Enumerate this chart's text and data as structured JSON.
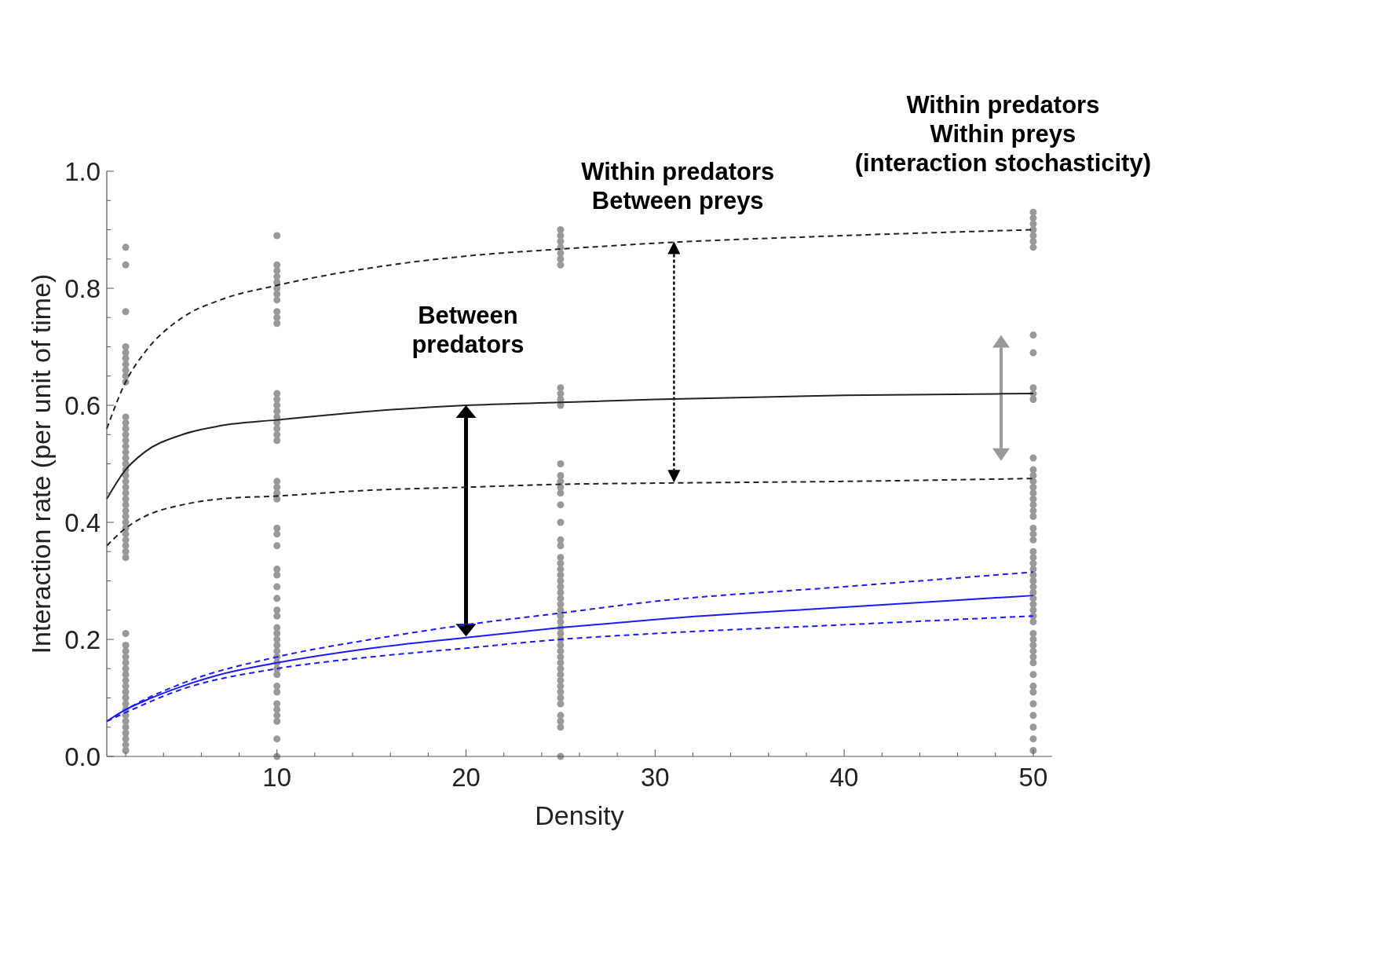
{
  "chart_data": {
    "type": "scatter",
    "xlabel": "Density",
    "ylabel": "Interaction rate (per unit of time)",
    "xlim": [
      1,
      51
    ],
    "ylim": [
      0,
      1
    ],
    "xticks": [
      {
        "value": 2,
        "label": null
      },
      {
        "value": 4,
        "label": null
      },
      {
        "value": 6,
        "label": null
      },
      {
        "value": 8,
        "label": null
      },
      10,
      {
        "value": 12,
        "label": null
      },
      {
        "value": 14,
        "label": null
      },
      {
        "value": 16,
        "label": null
      },
      {
        "value": 18,
        "label": null
      },
      20,
      {
        "value": 22,
        "label": null
      },
      {
        "value": 24,
        "label": null
      },
      {
        "value": 26,
        "label": null
      },
      {
        "value": 28,
        "label": null
      },
      30,
      {
        "value": 32,
        "label": null
      },
      {
        "value": 34,
        "label": null
      },
      {
        "value": 36,
        "label": null
      },
      {
        "value": 38,
        "label": null
      },
      40,
      {
        "value": 42,
        "label": null
      },
      {
        "value": 44,
        "label": null
      },
      {
        "value": 46,
        "label": null
      },
      {
        "value": 48,
        "label": null
      },
      50
    ],
    "yticks": [
      {
        "value": 0,
        "label": "0.0"
      },
      {
        "value": 0.05,
        "label": null
      },
      {
        "value": 0.1,
        "label": null
      },
      {
        "value": 0.15,
        "label": null
      },
      {
        "value": 0.2,
        "label": "0.2"
      },
      {
        "value": 0.25,
        "label": null
      },
      {
        "value": 0.3,
        "label": null
      },
      {
        "value": 0.35,
        "label": null
      },
      {
        "value": 0.4,
        "label": "0.4"
      },
      {
        "value": 0.45,
        "label": null
      },
      {
        "value": 0.5,
        "label": null
      },
      {
        "value": 0.55,
        "label": null
      },
      {
        "value": 0.6,
        "label": "0.6"
      },
      {
        "value": 0.65,
        "label": null
      },
      {
        "value": 0.7,
        "label": null
      },
      {
        "value": 0.75,
        "label": null
      },
      {
        "value": 0.8,
        "label": "0.8"
      },
      {
        "value": 0.85,
        "label": null
      },
      {
        "value": 0.9,
        "label": null
      },
      {
        "value": 0.95,
        "label": null
      },
      {
        "value": 1,
        "label": "1.0"
      }
    ],
    "grid": false,
    "annotations": [
      "Between\npredators",
      "Within predators\nBetween preys",
      "Within predators\nWithin preys\n(interaction stochasticity)"
    ],
    "series": [
      {
        "marker": "circle",
        "color": "#999999",
        "x": [
          2,
          2,
          2,
          2,
          2,
          2,
          2,
          2,
          2,
          2,
          2,
          2,
          2,
          2,
          2,
          2,
          2,
          2,
          2,
          2,
          2,
          2,
          2,
          2,
          2,
          2,
          2,
          2,
          2,
          2,
          2,
          2,
          2,
          2,
          2,
          2,
          2,
          2,
          2,
          2,
          2,
          2,
          2,
          2,
          2,
          2,
          2,
          2,
          2,
          2,
          2,
          2,
          2,
          2,
          2
        ],
        "values": [
          0.87,
          0.84,
          0.76,
          0.7,
          0.69,
          0.68,
          0.67,
          0.66,
          0.65,
          0.64,
          0.58,
          0.57,
          0.56,
          0.55,
          0.54,
          0.53,
          0.52,
          0.51,
          0.5,
          0.49,
          0.48,
          0.47,
          0.46,
          0.45,
          0.44,
          0.43,
          0.42,
          0.41,
          0.4,
          0.39,
          0.38,
          0.37,
          0.36,
          0.35,
          0.34,
          0.21,
          0.19,
          0.18,
          0.17,
          0.16,
          0.15,
          0.14,
          0.13,
          0.12,
          0.11,
          0.1,
          0.09,
          0.08,
          0.07,
          0.06,
          0.05,
          0.04,
          0.03,
          0.02,
          0.01
        ]
      },
      {
        "marker": "circle",
        "color": "#999999",
        "x": [
          10,
          10,
          10,
          10,
          10,
          10,
          10,
          10,
          10,
          10,
          10,
          10,
          10,
          10,
          10,
          10,
          10,
          10,
          10,
          10,
          10,
          10,
          10,
          10,
          10,
          10,
          10,
          10,
          10,
          10,
          10,
          10,
          10,
          10,
          10,
          10,
          10,
          10,
          10,
          10,
          10,
          10,
          10,
          10,
          10,
          10,
          10,
          10,
          10,
          10
        ],
        "values": [
          0.89,
          0.84,
          0.83,
          0.82,
          0.81,
          0.8,
          0.79,
          0.78,
          0.76,
          0.75,
          0.74,
          0.62,
          0.61,
          0.6,
          0.59,
          0.58,
          0.57,
          0.56,
          0.55,
          0.54,
          0.47,
          0.46,
          0.45,
          0.44,
          0.39,
          0.38,
          0.36,
          0.32,
          0.31,
          0.29,
          0.27,
          0.25,
          0.24,
          0.22,
          0.21,
          0.2,
          0.19,
          0.18,
          0.17,
          0.16,
          0.15,
          0.14,
          0.12,
          0.11,
          0.09,
          0.08,
          0.07,
          0.06,
          0.03,
          0.0
        ]
      },
      {
        "marker": "circle",
        "color": "#999999",
        "x": [
          25,
          25,
          25,
          25,
          25,
          25,
          25,
          25,
          25,
          25,
          25,
          25,
          25,
          25,
          25,
          25,
          25,
          25,
          25,
          25,
          25,
          25,
          25,
          25,
          25,
          25,
          25,
          25,
          25,
          25,
          25,
          25,
          25,
          25,
          25,
          25,
          25,
          25,
          25,
          25,
          25,
          25,
          25,
          25,
          25,
          25,
          25,
          25,
          25,
          25
        ],
        "values": [
          0.9,
          0.89,
          0.88,
          0.87,
          0.86,
          0.85,
          0.84,
          0.63,
          0.62,
          0.61,
          0.6,
          0.5,
          0.48,
          0.47,
          0.46,
          0.45,
          0.43,
          0.4,
          0.37,
          0.36,
          0.34,
          0.33,
          0.32,
          0.31,
          0.3,
          0.29,
          0.28,
          0.27,
          0.26,
          0.25,
          0.24,
          0.23,
          0.22,
          0.21,
          0.2,
          0.19,
          0.18,
          0.17,
          0.16,
          0.15,
          0.14,
          0.13,
          0.12,
          0.11,
          0.1,
          0.09,
          0.07,
          0.06,
          0.05,
          0.0
        ]
      },
      {
        "marker": "circle",
        "color": "#999999",
        "x": [
          50,
          50,
          50,
          50,
          50,
          50,
          50,
          50,
          50,
          50,
          50,
          50,
          50,
          50,
          50,
          50,
          50,
          50,
          50,
          50,
          50,
          50,
          50,
          50,
          50,
          50,
          50,
          50,
          50,
          50,
          50,
          50,
          50,
          50,
          50,
          50,
          50,
          50,
          50,
          50,
          50,
          50,
          50,
          50,
          50,
          50,
          50,
          50,
          50,
          50,
          50,
          50
        ],
        "values": [
          0.93,
          0.92,
          0.91,
          0.9,
          0.89,
          0.88,
          0.87,
          0.72,
          0.69,
          0.63,
          0.62,
          0.61,
          0.51,
          0.49,
          0.48,
          0.47,
          0.46,
          0.45,
          0.44,
          0.43,
          0.42,
          0.41,
          0.39,
          0.38,
          0.37,
          0.35,
          0.34,
          0.33,
          0.32,
          0.31,
          0.3,
          0.29,
          0.28,
          0.27,
          0.26,
          0.25,
          0.24,
          0.23,
          0.21,
          0.2,
          0.19,
          0.18,
          0.17,
          0.16,
          0.14,
          0.12,
          0.11,
          0.09,
          0.07,
          0.05,
          0.03,
          0.01
        ]
      },
      {
        "type": "line",
        "color": "#222222",
        "line_style": "dashed",
        "x": [
          1,
          2,
          3,
          5,
          7,
          10,
          15,
          20,
          25,
          30,
          40,
          50
        ],
        "values": [
          0.56,
          0.64,
          0.69,
          0.75,
          0.78,
          0.805,
          0.835,
          0.855,
          0.867,
          0.877,
          0.89,
          0.9
        ]
      },
      {
        "type": "line",
        "color": "#222222",
        "line_style": "solid",
        "x": [
          1,
          2,
          3,
          5,
          7,
          10,
          15,
          20,
          25,
          30,
          40,
          50
        ],
        "values": [
          0.44,
          0.49,
          0.52,
          0.55,
          0.565,
          0.575,
          0.59,
          0.6,
          0.605,
          0.61,
          0.617,
          0.62
        ]
      },
      {
        "type": "line",
        "color": "#222222",
        "line_style": "dashed",
        "x": [
          1,
          2,
          3,
          5,
          7,
          10,
          15,
          20,
          25,
          30,
          40,
          50
        ],
        "values": [
          0.36,
          0.39,
          0.41,
          0.43,
          0.44,
          0.445,
          0.455,
          0.46,
          0.465,
          0.467,
          0.47,
          0.475
        ]
      },
      {
        "type": "line",
        "color": "#1a1aff",
        "line_style": "dashed",
        "x": [
          1,
          2,
          5,
          10,
          15,
          20,
          25,
          30,
          40,
          50
        ],
        "values": [
          0.06,
          0.08,
          0.125,
          0.17,
          0.2,
          0.225,
          0.245,
          0.265,
          0.29,
          0.315
        ]
      },
      {
        "type": "line",
        "color": "#1a1aff",
        "line_style": "solid",
        "x": [
          1,
          2,
          3,
          5,
          7,
          10,
          15,
          20,
          25,
          30,
          40,
          50
        ],
        "values": [
          0.06,
          0.08,
          0.095,
          0.12,
          0.14,
          0.16,
          0.185,
          0.203,
          0.22,
          0.234,
          0.255,
          0.275
        ]
      },
      {
        "type": "line",
        "color": "#1a1aff",
        "line_style": "dashed",
        "x": [
          1,
          2,
          5,
          10,
          15,
          20,
          25,
          30,
          40,
          50
        ],
        "values": [
          0.06,
          0.075,
          0.115,
          0.15,
          0.17,
          0.185,
          0.2,
          0.21,
          0.225,
          0.24
        ]
      }
    ]
  }
}
